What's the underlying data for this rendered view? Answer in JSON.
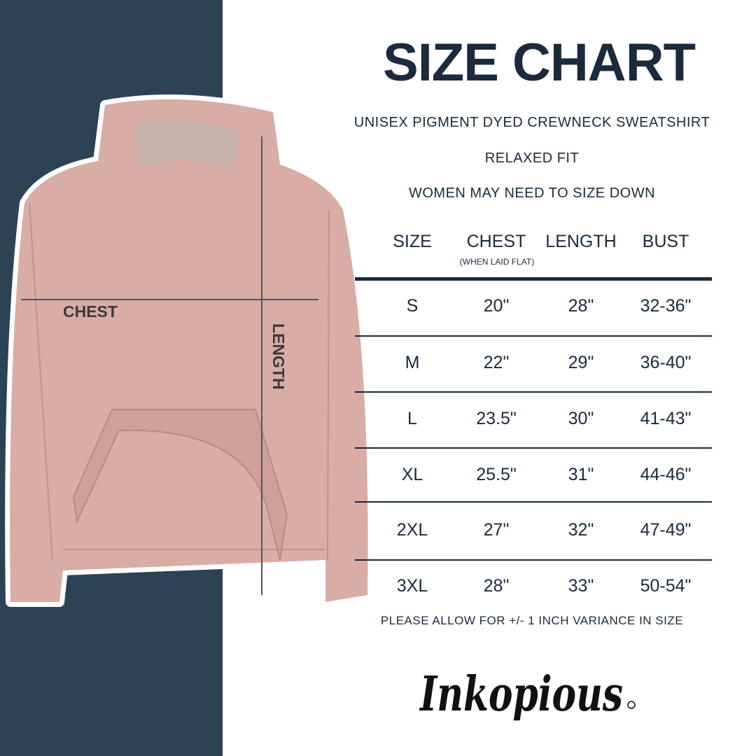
{
  "title": "SIZE CHART",
  "subtitle_lines": [
    "UNISEX PIGMENT DYED CREWNECK SWEATSHIRT",
    "RELAXED FIT",
    "WOMEN MAY NEED TO SIZE DOWN"
  ],
  "table": {
    "headers": [
      "SIZE",
      "CHEST",
      "LENGTH",
      "BUST"
    ],
    "chest_note": "(WHEN LAID FLAT)",
    "rows": [
      [
        "S",
        "20\"",
        "28\"",
        "32-36\""
      ],
      [
        "M",
        "22\"",
        "29\"",
        "36-40\""
      ],
      [
        "L",
        "23.5\"",
        "30\"",
        "41-43\""
      ],
      [
        "XL",
        "25.5\"",
        "31\"",
        "44-46\""
      ],
      [
        "2XL",
        "27\"",
        "32\"",
        "47-49\""
      ],
      [
        "3XL",
        "28\"",
        "33\"",
        "50-54\""
      ]
    ]
  },
  "variance_note": "PLEASE ALLOW FOR +/- 1 INCH VARIANCE IN SIZE",
  "image_labels": {
    "chest": "CHEST",
    "length": "LENGTH"
  },
  "brand": "Inkopious",
  "colors": {
    "navy": "#1b2a3d",
    "panel": "#2c4255",
    "garment": "#d9aca6"
  }
}
